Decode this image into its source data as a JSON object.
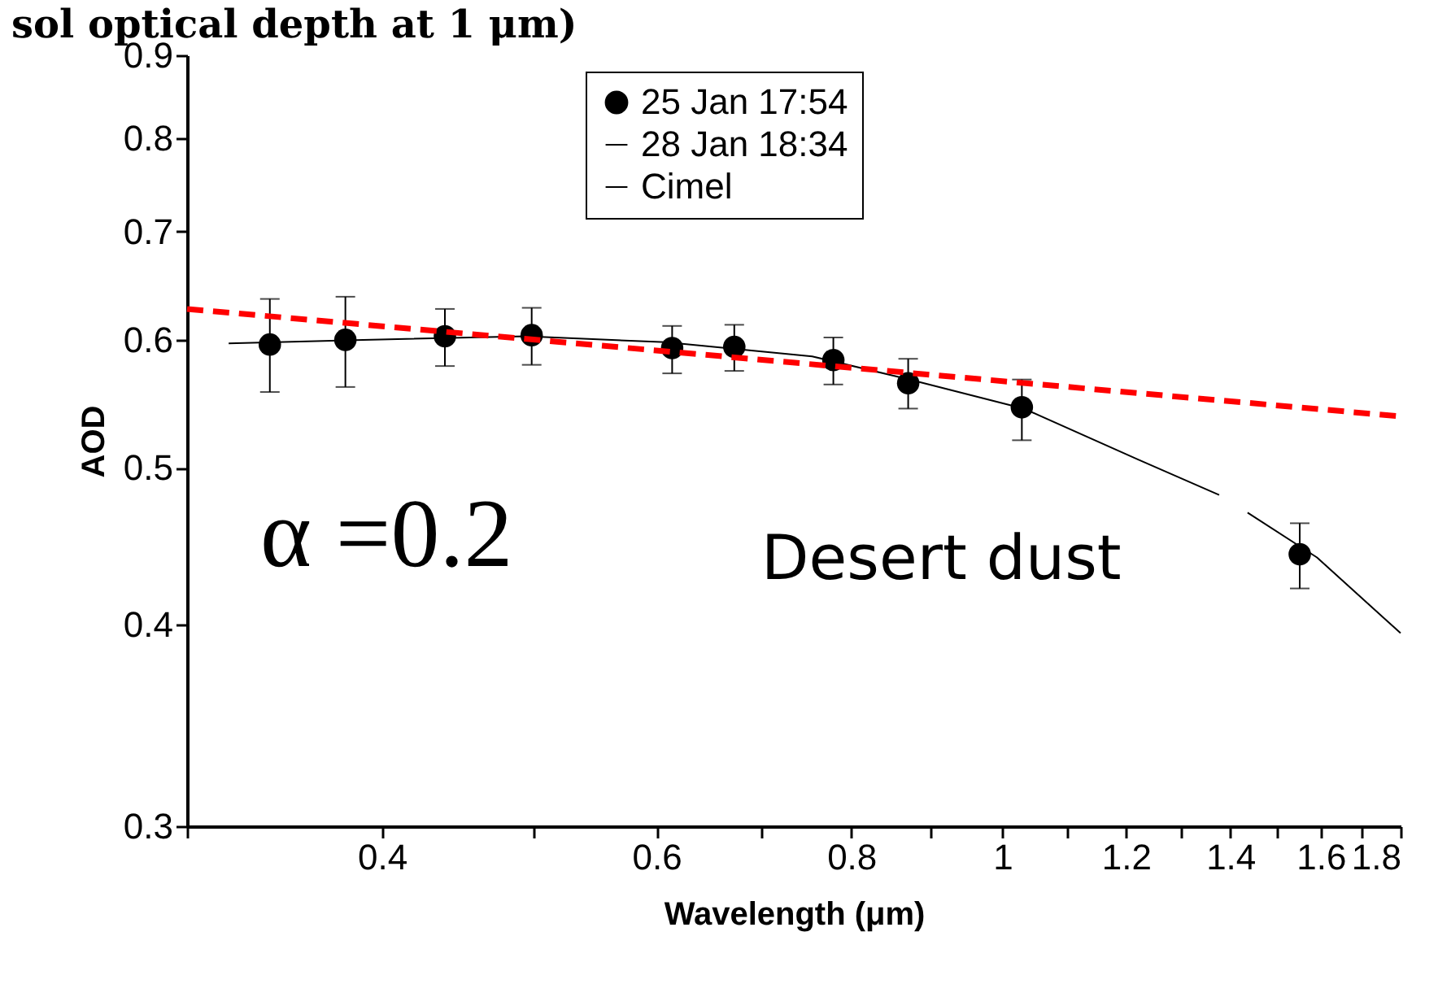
{
  "chart_data": {
    "type": "scatter",
    "title": "sol optical depth at 1 μm)",
    "xlabel": "Wavelength (μm)",
    "ylabel": "AOD",
    "log": "xy",
    "grid": false,
    "legend": "top",
    "xlim": [
      0.3,
      1.8
    ],
    "xticks": [
      {
        "value": 0.3,
        "label": null
      },
      0.4,
      {
        "value": 0.5,
        "label": null
      },
      0.6,
      {
        "value": 0.7,
        "label": null
      },
      0.8,
      {
        "value": 0.9,
        "label": null
      },
      1,
      {
        "value": 1.1,
        "label": null
      },
      1.2,
      {
        "value": 1.3,
        "label": null
      },
      1.4,
      {
        "value": 1.5,
        "label": null
      },
      1.6,
      {
        "value": 1.7,
        "label": null
      },
      1.8
    ],
    "ylim": [
      0.3,
      0.9
    ],
    "yticks": [
      0.3,
      0.4,
      0.5,
      0.6,
      0.7,
      0.8,
      0.9
    ],
    "annotations": [
      "α =0.2",
      "Desert dust"
    ],
    "series": [
      {
        "name": "25 Jan 17:54",
        "marker": "circle",
        "color": "#000000",
        "x": [
          0.339,
          0.379,
          0.439,
          0.499,
          0.614,
          0.673,
          0.779,
          0.87,
          1.029,
          1.551
        ],
        "values": [
          0.596,
          0.6,
          0.603,
          0.604,
          0.593,
          0.594,
          0.583,
          0.564,
          0.545,
          0.442
        ],
        "errors": [
          [
            0.557,
            0.636
          ],
          [
            0.561,
            0.638
          ],
          [
            0.578,
            0.627
          ],
          [
            0.579,
            0.628
          ],
          [
            0.572,
            0.612
          ],
          [
            0.574,
            0.613
          ],
          [
            0.563,
            0.602
          ],
          [
            0.544,
            0.584
          ],
          [
            0.52,
            0.567
          ],
          [
            0.421,
            0.462
          ]
        ]
      },
      {
        "name": "28 Jan 18:34",
        "type": "line",
        "color": "#000000",
        "x": [
          0.319,
          0.389,
          0.495,
          0.608,
          0.755,
          0.872,
          1.032,
          1.221,
          1.377
        ],
        "values": [
          0.597,
          0.6,
          0.603,
          0.598,
          0.586,
          0.567,
          0.544,
          0.506,
          0.481
        ]
      },
      {
        "name": "Cimel",
        "type": "line",
        "color": "#000000",
        "x": [
          1.436,
          1.591,
          1.8
        ],
        "values": [
          0.469,
          0.44,
          0.395
        ]
      },
      {
        "type": "line",
        "color": "#ff0000",
        "line_style": "dashed",
        "x": [
          0.3,
          1.8
        ],
        "values": [
          0.627,
          0.538
        ]
      }
    ]
  }
}
